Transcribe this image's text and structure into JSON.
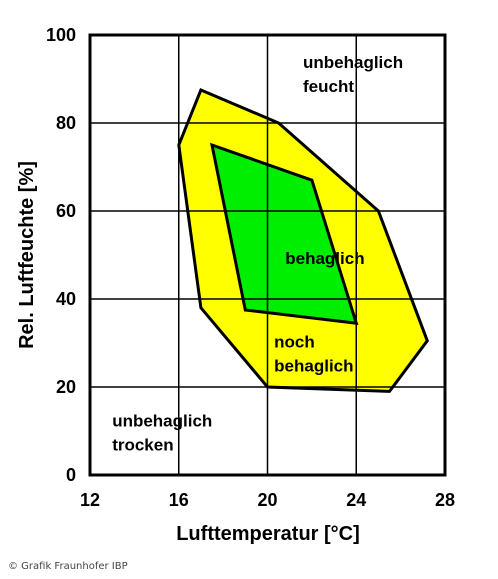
{
  "chart_data": {
    "type": "area",
    "xlabel": "Lufttemperatur [°C]",
    "ylabel": "Rel. Luftfeuchte [%]",
    "xlim": [
      12,
      28
    ],
    "ylim": [
      0,
      100
    ],
    "x_ticks": [
      "12",
      "16",
      "20",
      "24",
      "28"
    ],
    "y_ticks": [
      "0",
      "20",
      "40",
      "60",
      "80",
      "100"
    ],
    "grid": true,
    "colors": {
      "noch_behaglich": "#ffff00",
      "behaglich": "#00ee00",
      "outline": "#000000"
    },
    "regions": [
      {
        "name": "noch behaglich",
        "points": [
          [
            17.0,
            87.5
          ],
          [
            20.5,
            80
          ],
          [
            25.0,
            60
          ],
          [
            27.2,
            30.5
          ],
          [
            25.5,
            19
          ],
          [
            20.0,
            20
          ],
          [
            17.0,
            38
          ],
          [
            16.0,
            75
          ]
        ]
      },
      {
        "name": "behaglich",
        "points": [
          [
            17.5,
            75
          ],
          [
            22.0,
            67
          ],
          [
            24.0,
            34.5
          ],
          [
            19.0,
            37.5
          ]
        ]
      }
    ],
    "annotations": [
      {
        "lines": [
          "unbehaglich",
          "feucht"
        ],
        "x": 21.6,
        "y": 92.5
      },
      {
        "lines": [
          "behaglich"
        ],
        "x": 20.8,
        "y": 48
      },
      {
        "lines": [
          "noch",
          "behaglich"
        ],
        "x": 20.3,
        "y": 29
      },
      {
        "lines": [
          "unbehaglich",
          "trocken"
        ],
        "x": 13.0,
        "y": 11
      }
    ]
  },
  "credit": "© Grafik Fraunhofer IBP"
}
